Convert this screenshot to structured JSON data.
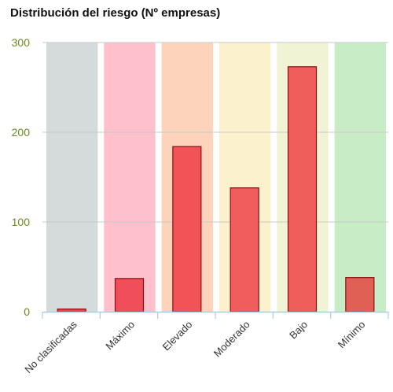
{
  "chart_data": {
    "type": "bar",
    "title": "Distribución del riesgo (Nº empresas)",
    "categories": [
      "No clasificadas",
      "Máximo",
      "Elevado",
      "Moderado",
      "Bajo",
      "Mínimo"
    ],
    "values": [
      3,
      37,
      184,
      138,
      273,
      38
    ],
    "ylim": [
      0,
      300
    ],
    "yticks": [
      0,
      100,
      200,
      300
    ],
    "grid": true,
    "legend": "none",
    "colors": {
      "bands": [
        "#d5dbdb",
        "#fec0cb",
        "#fed3bc",
        "#fbf1cc",
        "#f1f3d5",
        "#c8edc6"
      ],
      "bars": [
        "#e8434f",
        "#f04f5a",
        "#f25356",
        "#ef5e5c",
        "#ef5e5a",
        "#e06055"
      ],
      "bar_stroke": "#8b0e15",
      "axis": "#a8d0e0",
      "ytick_text": "#6a8a1e"
    }
  }
}
